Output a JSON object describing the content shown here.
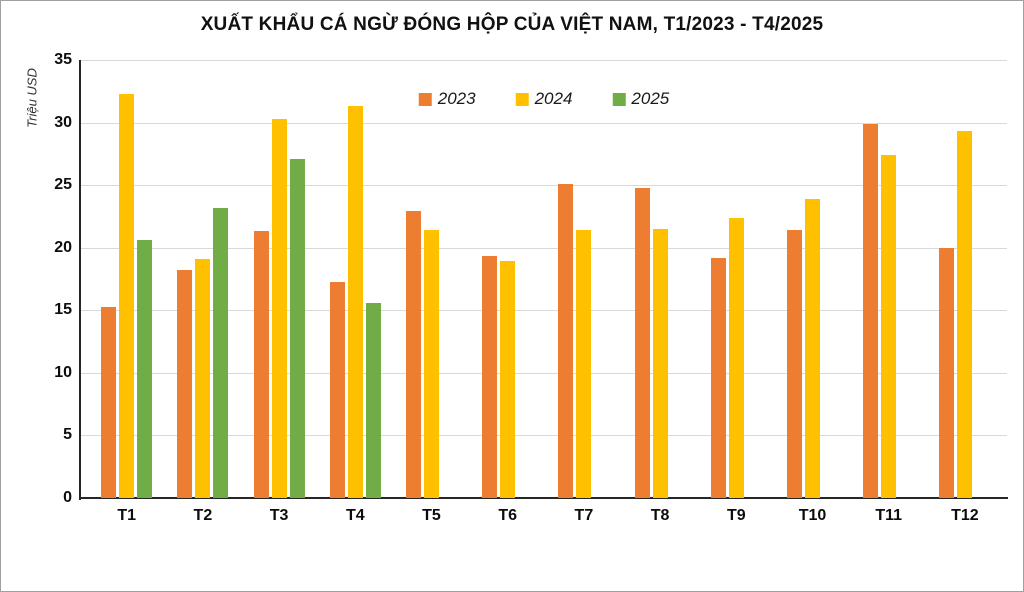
{
  "chart_data": {
    "type": "bar",
    "title": "XUẤT KHẨU CÁ NGỪ ĐÓNG HỘP CỦA VIỆT NAM, T1/2023 - T4/2025",
    "ylabel": "Triệu USD",
    "xlabel": "",
    "categories": [
      "T1",
      "T2",
      "T3",
      "T4",
      "T5",
      "T6",
      "T7",
      "T8",
      "T9",
      "T10",
      "T11",
      "T12"
    ],
    "series": [
      {
        "name": "2023",
        "color": "#ED7D31",
        "values": [
          15.3,
          18.2,
          21.3,
          17.3,
          22.9,
          19.3,
          25.1,
          24.8,
          19.2,
          21.4,
          29.9,
          20.0
        ]
      },
      {
        "name": "2024",
        "color": "#FFC000",
        "values": [
          32.3,
          19.1,
          30.3,
          31.3,
          21.4,
          18.9,
          21.4,
          21.5,
          22.4,
          23.9,
          27.4,
          29.3
        ]
      },
      {
        "name": "2025",
        "color": "#70AD47",
        "values": [
          20.6,
          23.2,
          27.1,
          15.6,
          null,
          null,
          null,
          null,
          null,
          null,
          null,
          null
        ]
      }
    ],
    "ylim": [
      0,
      35
    ],
    "ytick_step": 5,
    "grid": true,
    "legend_position": "top-center",
    "colors": {
      "grid": "#d9d9d9",
      "axis": "#262626",
      "tick_text": "#0d0d0d",
      "title_text": "#111111",
      "background": "#ffffff"
    }
  }
}
